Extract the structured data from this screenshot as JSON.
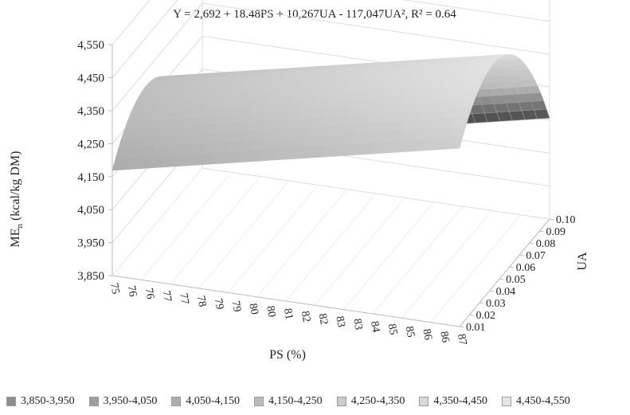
{
  "chart_data": {
    "type": "surface3d",
    "title": "Y = 2,692 + 18.48PS + 10,267UA - 117,047UA², R² = 0.64",
    "equation": {
      "intercept": 2692,
      "b_ps": 18.48,
      "b_ua": 10267,
      "b_ua2": -117047
    },
    "r_squared": 0.64,
    "xlabel": "PS (%)",
    "ylabel": "UA",
    "zlabel": "MEn (kcal/kg DM)",
    "zlabel_main": "ME",
    "zlabel_sub": "n",
    "zlabel_rest": " (kcal/kg DM)",
    "x_ticks": [
      "75",
      "76",
      "76",
      "77",
      "77",
      "78",
      "79",
      "79",
      "80",
      "80",
      "81",
      "82",
      "82",
      "83",
      "83",
      "84",
      "85",
      "85",
      "86",
      "86",
      "87"
    ],
    "y_ticks": [
      "0.01",
      "0.02",
      "0.03",
      "0.04",
      "0.05",
      "0.06",
      "0.07",
      "0.08",
      "0.09",
      "0.10"
    ],
    "z_ticks": [
      "3,850",
      "3,950",
      "4,050",
      "4,150",
      "4,250",
      "4,350",
      "4,450",
      "4,550"
    ],
    "zlim": [
      3850,
      4550
    ],
    "xlim": [
      75,
      87
    ],
    "ylim": [
      0.01,
      0.1
    ],
    "legend": [
      "3,850-3,950",
      "3,950-4,050",
      "4,050-4,150",
      "4,150-4,250",
      "4,250-4,350",
      "4,350-4,450",
      "4,450-4,550"
    ],
    "legend_colors": [
      "#8e8e8e",
      "#9e9e9e",
      "#adadad",
      "#bcbcbc",
      "#cbcbcb",
      "#d9d9d9",
      "#e6e6e6"
    ],
    "legend_placement": "bottom",
    "grid": true
  }
}
